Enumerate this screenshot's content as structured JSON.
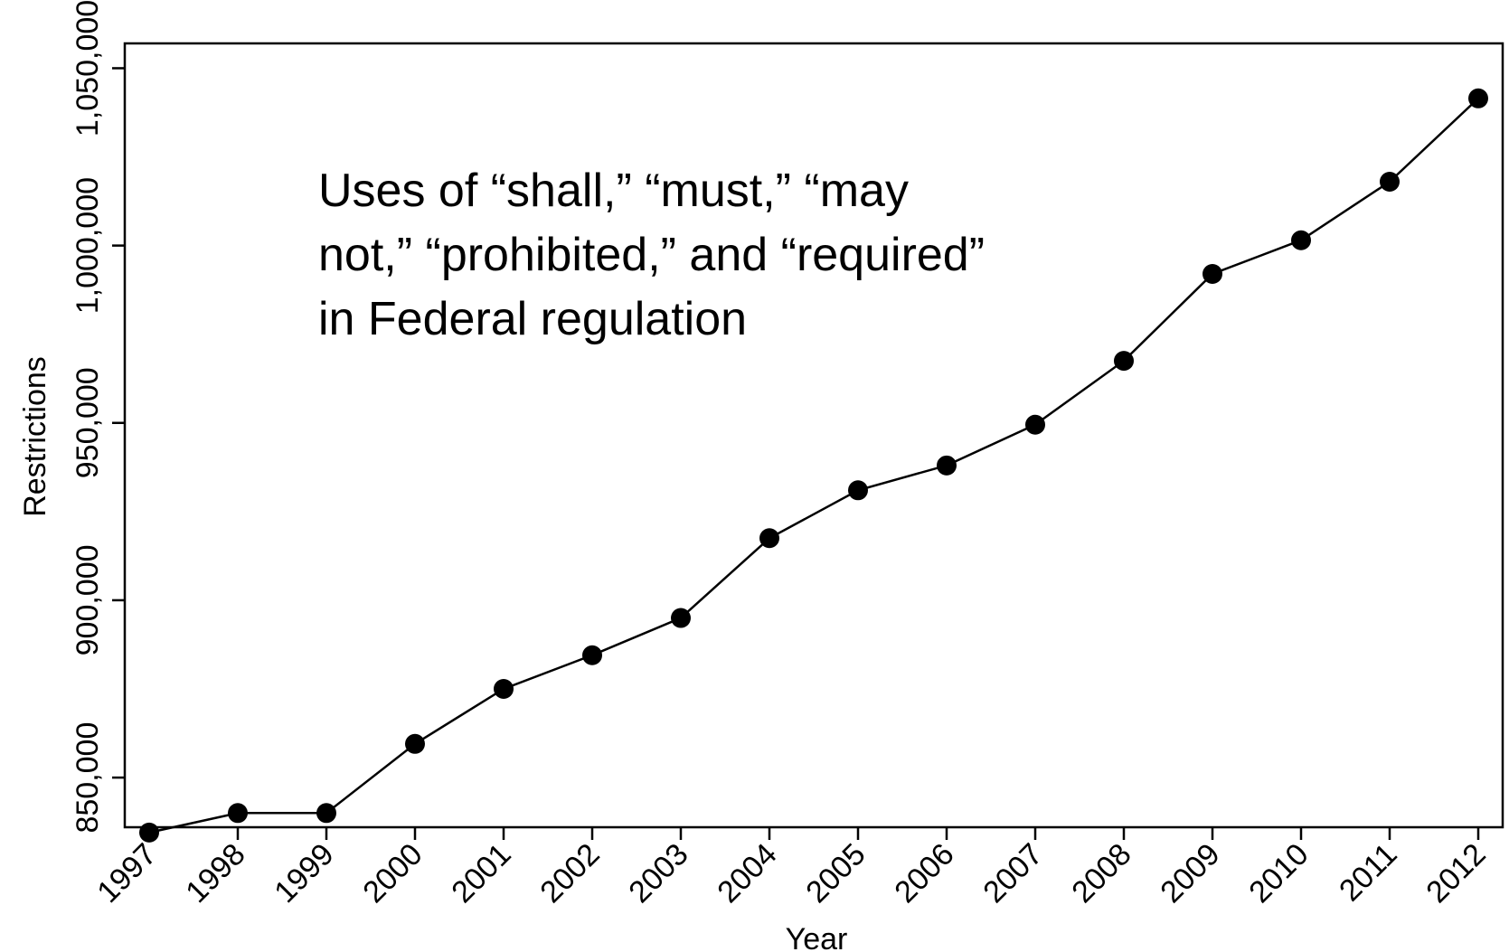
{
  "chart_data": {
    "type": "line",
    "title": "",
    "xlabel": "Year",
    "ylabel": "Restrictions",
    "x": [
      "1997",
      "1998",
      "1999",
      "2000",
      "2001",
      "2002",
      "2003",
      "2004",
      "2005",
      "2006",
      "2007",
      "2008",
      "2009",
      "2010",
      "2011",
      "2012"
    ],
    "series": [
      {
        "values": [
          834500,
          840000,
          840000,
          859500,
          875000,
          884500,
          895000,
          917500,
          931000,
          938000,
          949500,
          967500,
          992000,
          1001500,
          1018000,
          1041500
        ]
      }
    ],
    "ylim": [
      836000,
      1057000
    ],
    "yticks": [
      850000,
      900000,
      950000,
      1000000,
      1050000
    ],
    "ytick_labels": [
      "850,000",
      "900,000",
      "950,000",
      "1,000,000",
      "1,050,000"
    ],
    "annotation": [
      "Uses of “shall,” “must,” “may",
      "not,” “prohibited,” and “required”",
      "in Federal regulation"
    ],
    "grid": false,
    "legend": "none",
    "marker": "circle",
    "line_color": "#000000"
  }
}
